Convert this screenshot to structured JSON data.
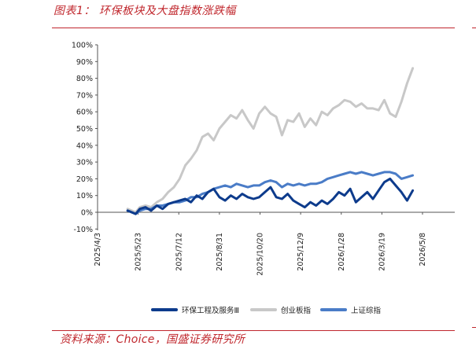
{
  "header": {
    "title": "图表1：  环保板块及大盘指数涨跌幅"
  },
  "footer": {
    "source": "资料来源：Choice，国盛证券研究所"
  },
  "chart_data": {
    "type": "line",
    "title": "",
    "xlabel": "",
    "ylabel": "",
    "ylim": [
      -10,
      100
    ],
    "y_ticks": [
      "100%",
      "90%",
      "80%",
      "70%",
      "60%",
      "50%",
      "40%",
      "30%",
      "20%",
      "10%",
      "0%",
      "-10%"
    ],
    "x_ticks": [
      "2025/4/3",
      "2025/5/23",
      "2025/7/12",
      "2025/8/31",
      "2025/10/20",
      "2025/12/9",
      "2026/1/28",
      "2026/3/19",
      "2026/5/8"
    ],
    "grid": false,
    "legend_position": "bottom",
    "series": [
      {
        "name": "环保工程及服务Ⅲ",
        "color": "#0d3b8c",
        "x": [
          "2025/5/10",
          "2025/5/15",
          "2025/5/20",
          "2025/5/25",
          "2025/6/1",
          "2025/6/8",
          "2025/6/15",
          "2025/6/22",
          "2025/6/29",
          "2025/7/6",
          "2025/7/13",
          "2025/7/20",
          "2025/7/27",
          "2025/8/3",
          "2025/8/10",
          "2025/8/17",
          "2025/8/24",
          "2025/8/31",
          "2025/9/7",
          "2025/9/14",
          "2025/9/21",
          "2025/9/28",
          "2025/10/5",
          "2025/10/12",
          "2025/10/19",
          "2025/10/26",
          "2025/11/2",
          "2025/11/9",
          "2025/11/16",
          "2025/11/23",
          "2025/11/30",
          "2025/12/7",
          "2025/12/14",
          "2025/12/21",
          "2025/12/28",
          "2026/1/4",
          "2026/1/11",
          "2026/1/18",
          "2026/1/25",
          "2026/2/1",
          "2026/2/8",
          "2026/2/15",
          "2026/2/22",
          "2026/3/1",
          "2026/3/8",
          "2026/3/15",
          "2026/3/22",
          "2026/3/29",
          "2026/4/5",
          "2026/4/12",
          "2026/4/19",
          "2026/4/26"
        ],
        "values": [
          1,
          0,
          -1,
          2,
          3,
          1,
          4,
          2,
          5,
          6,
          7,
          8,
          6,
          10,
          8,
          12,
          14,
          9,
          7,
          10,
          8,
          11,
          9,
          8,
          9,
          12,
          15,
          9,
          8,
          11,
          7,
          5,
          3,
          6,
          4,
          7,
          5,
          8,
          12,
          10,
          14,
          6,
          9,
          12,
          8,
          13,
          18,
          20,
          16,
          12,
          7,
          13
        ]
      },
      {
        "name": "创业板指",
        "color": "#c8c8c8",
        "x": [
          "2025/5/10",
          "2025/5/15",
          "2025/5/20",
          "2025/5/25",
          "2025/6/1",
          "2025/6/8",
          "2025/6/15",
          "2025/6/22",
          "2025/6/29",
          "2025/7/6",
          "2025/7/13",
          "2025/7/20",
          "2025/7/27",
          "2025/8/3",
          "2025/8/10",
          "2025/8/17",
          "2025/8/24",
          "2025/8/31",
          "2025/9/7",
          "2025/9/14",
          "2025/9/21",
          "2025/9/28",
          "2025/10/5",
          "2025/10/12",
          "2025/10/19",
          "2025/10/26",
          "2025/11/2",
          "2025/11/9",
          "2025/11/16",
          "2025/11/23",
          "2025/11/30",
          "2025/12/7",
          "2025/12/14",
          "2025/12/21",
          "2025/12/28",
          "2026/1/4",
          "2026/1/11",
          "2026/1/18",
          "2026/1/25",
          "2026/2/1",
          "2026/2/8",
          "2026/2/15",
          "2026/2/22",
          "2026/3/1",
          "2026/3/8",
          "2026/3/15",
          "2026/3/22",
          "2026/3/29",
          "2026/4/5",
          "2026/4/12",
          "2026/4/19",
          "2026/4/26"
        ],
        "values": [
          2,
          1,
          0,
          3,
          4,
          3,
          6,
          8,
          12,
          15,
          20,
          28,
          32,
          37,
          45,
          47,
          43,
          50,
          54,
          58,
          56,
          61,
          55,
          50,
          59,
          63,
          59,
          57,
          46,
          55,
          54,
          59,
          51,
          56,
          52,
          60,
          58,
          62,
          64,
          67,
          66,
          63,
          65,
          62,
          62,
          61,
          67,
          59,
          57,
          66,
          77,
          86
        ]
      },
      {
        "name": "上证综指",
        "color": "#4a7cc7",
        "x": [
          "2025/5/10",
          "2025/5/15",
          "2025/5/20",
          "2025/5/25",
          "2025/6/1",
          "2025/6/8",
          "2025/6/15",
          "2025/6/22",
          "2025/6/29",
          "2025/7/6",
          "2025/7/13",
          "2025/7/20",
          "2025/7/27",
          "2025/8/3",
          "2025/8/10",
          "2025/8/17",
          "2025/8/24",
          "2025/8/31",
          "2025/9/7",
          "2025/9/14",
          "2025/9/21",
          "2025/9/28",
          "2025/10/5",
          "2025/10/12",
          "2025/10/19",
          "2025/10/26",
          "2025/11/2",
          "2025/11/9",
          "2025/11/16",
          "2025/11/23",
          "2025/11/30",
          "2025/12/7",
          "2025/12/14",
          "2025/12/21",
          "2025/12/28",
          "2026/1/4",
          "2026/1/11",
          "2026/1/18",
          "2026/1/25",
          "2026/2/1",
          "2026/2/8",
          "2026/2/15",
          "2026/2/22",
          "2026/3/1",
          "2026/3/8",
          "2026/3/15",
          "2026/3/22",
          "2026/3/29",
          "2026/4/5",
          "2026/4/12",
          "2026/4/19",
          "2026/4/26"
        ],
        "values": [
          1,
          0,
          -1,
          1,
          2,
          2,
          4,
          4,
          5,
          6,
          6,
          7,
          9,
          9,
          11,
          12,
          14,
          15,
          16,
          15,
          17,
          16,
          15,
          16,
          16,
          18,
          19,
          18,
          15,
          17,
          16,
          17,
          16,
          17,
          17,
          18,
          20,
          21,
          22,
          23,
          24,
          23,
          24,
          23,
          22,
          23,
          24,
          24,
          23,
          20,
          21,
          22
        ]
      }
    ]
  }
}
